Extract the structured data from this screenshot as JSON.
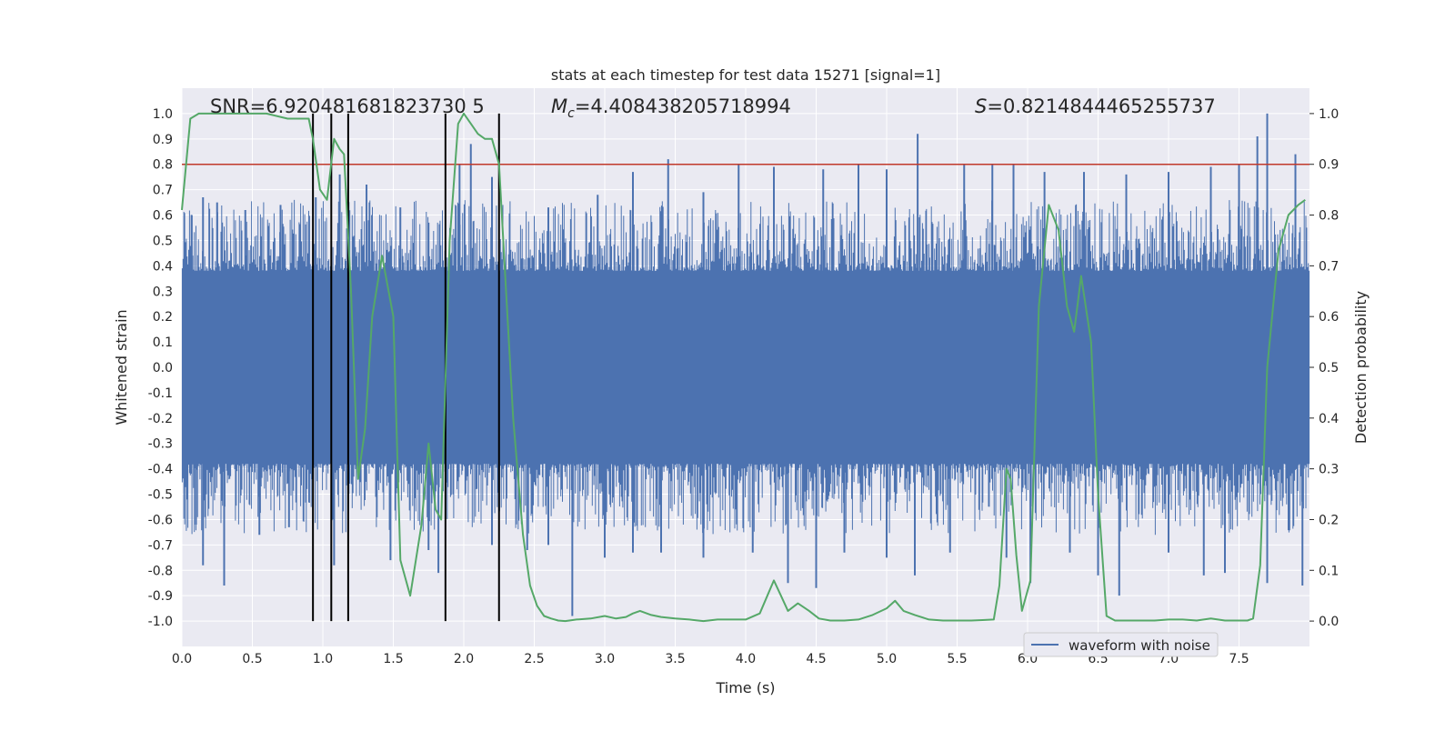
{
  "chart_data": {
    "type": "line",
    "title": "stats at each timestep for test data 15271 [signal=1]",
    "xlabel": "Time (s)",
    "ylabel_left": "Whitened strain",
    "ylabel_right": "Detection probability",
    "annotations": {
      "snr": "SNR=6.920481681823730 5",
      "mc_symbol": "M",
      "mc_sub": "c",
      "mc_value": "=4.408438205718994",
      "s_symbol": "S",
      "s_value": "=0.8214844465255737"
    },
    "xlim": [
      0,
      8
    ],
    "ylim_left": [
      -1.1,
      1.1
    ],
    "ylim_right": [
      -0.05,
      1.05
    ],
    "x_ticks": [
      "0.0",
      "0.5",
      "1.0",
      "1.5",
      "2.0",
      "2.5",
      "3.0",
      "3.5",
      "4.0",
      "4.5",
      "5.0",
      "5.5",
      "6.0",
      "6.5",
      "7.0",
      "7.5"
    ],
    "y_ticks_left": [
      "1.0",
      "0.9",
      "0.8",
      "0.7",
      "0.6",
      "0.5",
      "0.4",
      "0.3",
      "0.2",
      "0.1",
      "0.0",
      "-0.1",
      "-0.2",
      "-0.3",
      "-0.4",
      "-0.5",
      "-0.6",
      "-0.7",
      "-0.8",
      "-0.9",
      "-1.0"
    ],
    "y_ticks_right": [
      "1.0",
      "0.9",
      "0.8",
      "0.7",
      "0.6",
      "0.5",
      "0.4",
      "0.3",
      "0.2",
      "0.1",
      "0.0"
    ],
    "grid": true,
    "legend": {
      "position": "lower-right",
      "entries": [
        "waveform with noise"
      ]
    },
    "threshold": {
      "value": 0.9,
      "axis": "right",
      "color": "#c0392b"
    },
    "vlines": [
      0.93,
      1.06,
      1.18,
      1.87,
      2.25
    ],
    "waveform": {
      "name": "waveform with noise",
      "color": "#4c72b0",
      "envelope_upper": 0.38,
      "envelope_lower": -0.38,
      "peaks_top": [
        [
          0.07,
          0.6
        ],
        [
          0.15,
          0.67
        ],
        [
          0.25,
          0.65
        ],
        [
          0.45,
          0.62
        ],
        [
          0.7,
          0.64
        ],
        [
          0.95,
          0.67
        ],
        [
          1.12,
          0.76
        ],
        [
          1.31,
          0.72
        ],
        [
          1.55,
          0.63
        ],
        [
          1.75,
          0.57
        ],
        [
          1.97,
          0.8
        ],
        [
          2.05,
          0.88
        ],
        [
          2.2,
          0.75
        ],
        [
          2.6,
          0.63
        ],
        [
          2.95,
          0.68
        ],
        [
          3.2,
          0.77
        ],
        [
          3.45,
          0.82
        ],
        [
          3.7,
          0.69
        ],
        [
          3.95,
          0.8
        ],
        [
          4.2,
          0.79
        ],
        [
          4.55,
          0.78
        ],
        [
          4.8,
          0.8
        ],
        [
          5.0,
          0.78
        ],
        [
          5.22,
          0.92
        ],
        [
          5.55,
          0.8
        ],
        [
          5.75,
          0.8
        ],
        [
          5.9,
          0.8
        ],
        [
          6.12,
          0.77
        ],
        [
          6.4,
          0.77
        ],
        [
          6.7,
          0.76
        ],
        [
          7.0,
          0.77
        ],
        [
          7.3,
          0.79
        ],
        [
          7.5,
          0.8
        ],
        [
          7.63,
          0.91
        ],
        [
          7.7,
          1.0
        ],
        [
          7.9,
          0.84
        ]
      ],
      "peaks_bottom": [
        [
          0.1,
          -0.62
        ],
        [
          0.15,
          -0.78
        ],
        [
          0.3,
          -0.86
        ],
        [
          0.55,
          -0.66
        ],
        [
          0.76,
          -0.63
        ],
        [
          1.08,
          -0.78
        ],
        [
          1.18,
          -0.65
        ],
        [
          1.48,
          -0.76
        ],
        [
          1.75,
          -0.72
        ],
        [
          1.82,
          -0.81
        ],
        [
          2.2,
          -0.7
        ],
        [
          2.45,
          -0.72
        ],
        [
          2.6,
          -0.7
        ],
        [
          2.77,
          -0.98
        ],
        [
          3.0,
          -0.75
        ],
        [
          3.2,
          -0.73
        ],
        [
          3.4,
          -0.73
        ],
        [
          3.7,
          -0.75
        ],
        [
          4.05,
          -0.73
        ],
        [
          4.3,
          -0.85
        ],
        [
          4.5,
          -0.87
        ],
        [
          4.7,
          -0.73
        ],
        [
          5.0,
          -0.75
        ],
        [
          5.2,
          -0.82
        ],
        [
          5.45,
          -0.73
        ],
        [
          5.85,
          -0.75
        ],
        [
          6.02,
          -0.85
        ],
        [
          6.3,
          -0.73
        ],
        [
          6.5,
          -0.82
        ],
        [
          6.65,
          -0.9
        ],
        [
          7.0,
          -0.73
        ],
        [
          7.25,
          -0.82
        ],
        [
          7.4,
          -0.81
        ],
        [
          7.7,
          -0.85
        ],
        [
          7.95,
          -0.86
        ]
      ]
    },
    "probability": {
      "color": "#55a868",
      "x": [
        0.0,
        0.06,
        0.12,
        0.2,
        0.4,
        0.6,
        0.75,
        0.8,
        0.9,
        0.93,
        0.98,
        1.03,
        1.08,
        1.12,
        1.15,
        1.2,
        1.25,
        1.3,
        1.35,
        1.42,
        1.5,
        1.55,
        1.62,
        1.7,
        1.75,
        1.8,
        1.84,
        1.9,
        1.96,
        2.0,
        2.05,
        2.1,
        2.15,
        2.2,
        2.25,
        2.3,
        2.35,
        2.42,
        2.47,
        2.52,
        2.57,
        2.62,
        2.67,
        2.72,
        2.8,
        2.9,
        3.0,
        3.08,
        3.15,
        3.2,
        3.25,
        3.33,
        3.4,
        3.5,
        3.6,
        3.7,
        3.8,
        3.9,
        4.0,
        4.1,
        4.2,
        4.25,
        4.3,
        4.37,
        4.45,
        4.52,
        4.6,
        4.7,
        4.8,
        4.9,
        5.0,
        5.06,
        5.12,
        5.2,
        5.3,
        5.4,
        5.5,
        5.6,
        5.68,
        5.76,
        5.8,
        5.85,
        5.88,
        5.92,
        5.96,
        6.02,
        6.08,
        6.15,
        6.22,
        6.28,
        6.33,
        6.38,
        6.45,
        6.5,
        6.56,
        6.62,
        6.7,
        6.8,
        6.9,
        7.0,
        7.1,
        7.2,
        7.3,
        7.4,
        7.5,
        7.56,
        7.6,
        7.65,
        7.7,
        7.78,
        7.85,
        7.92,
        7.97
      ],
      "y": [
        0.81,
        0.99,
        1.0,
        1.0,
        1.0,
        1.0,
        0.99,
        0.99,
        0.99,
        0.95,
        0.85,
        0.83,
        0.95,
        0.93,
        0.92,
        0.65,
        0.28,
        0.38,
        0.6,
        0.72,
        0.6,
        0.12,
        0.05,
        0.19,
        0.35,
        0.22,
        0.2,
        0.75,
        0.98,
        1.0,
        0.98,
        0.96,
        0.95,
        0.95,
        0.9,
        0.65,
        0.4,
        0.17,
        0.07,
        0.03,
        0.01,
        0.005,
        0.001,
        0.0,
        0.003,
        0.005,
        0.01,
        0.005,
        0.008,
        0.015,
        0.02,
        0.012,
        0.008,
        0.005,
        0.003,
        0.0,
        0.003,
        0.003,
        0.003,
        0.015,
        0.08,
        0.05,
        0.02,
        0.035,
        0.02,
        0.005,
        0.001,
        0.001,
        0.003,
        0.012,
        0.025,
        0.04,
        0.02,
        0.012,
        0.003,
        0.001,
        0.001,
        0.001,
        0.002,
        0.003,
        0.07,
        0.3,
        0.28,
        0.13,
        0.02,
        0.08,
        0.62,
        0.82,
        0.77,
        0.62,
        0.57,
        0.68,
        0.55,
        0.25,
        0.01,
        0.001,
        0.001,
        0.001,
        0.001,
        0.003,
        0.003,
        0.001,
        0.005,
        0.001,
        0.001,
        0.001,
        0.005,
        0.11,
        0.5,
        0.73,
        0.8,
        0.82,
        0.83
      ]
    }
  }
}
